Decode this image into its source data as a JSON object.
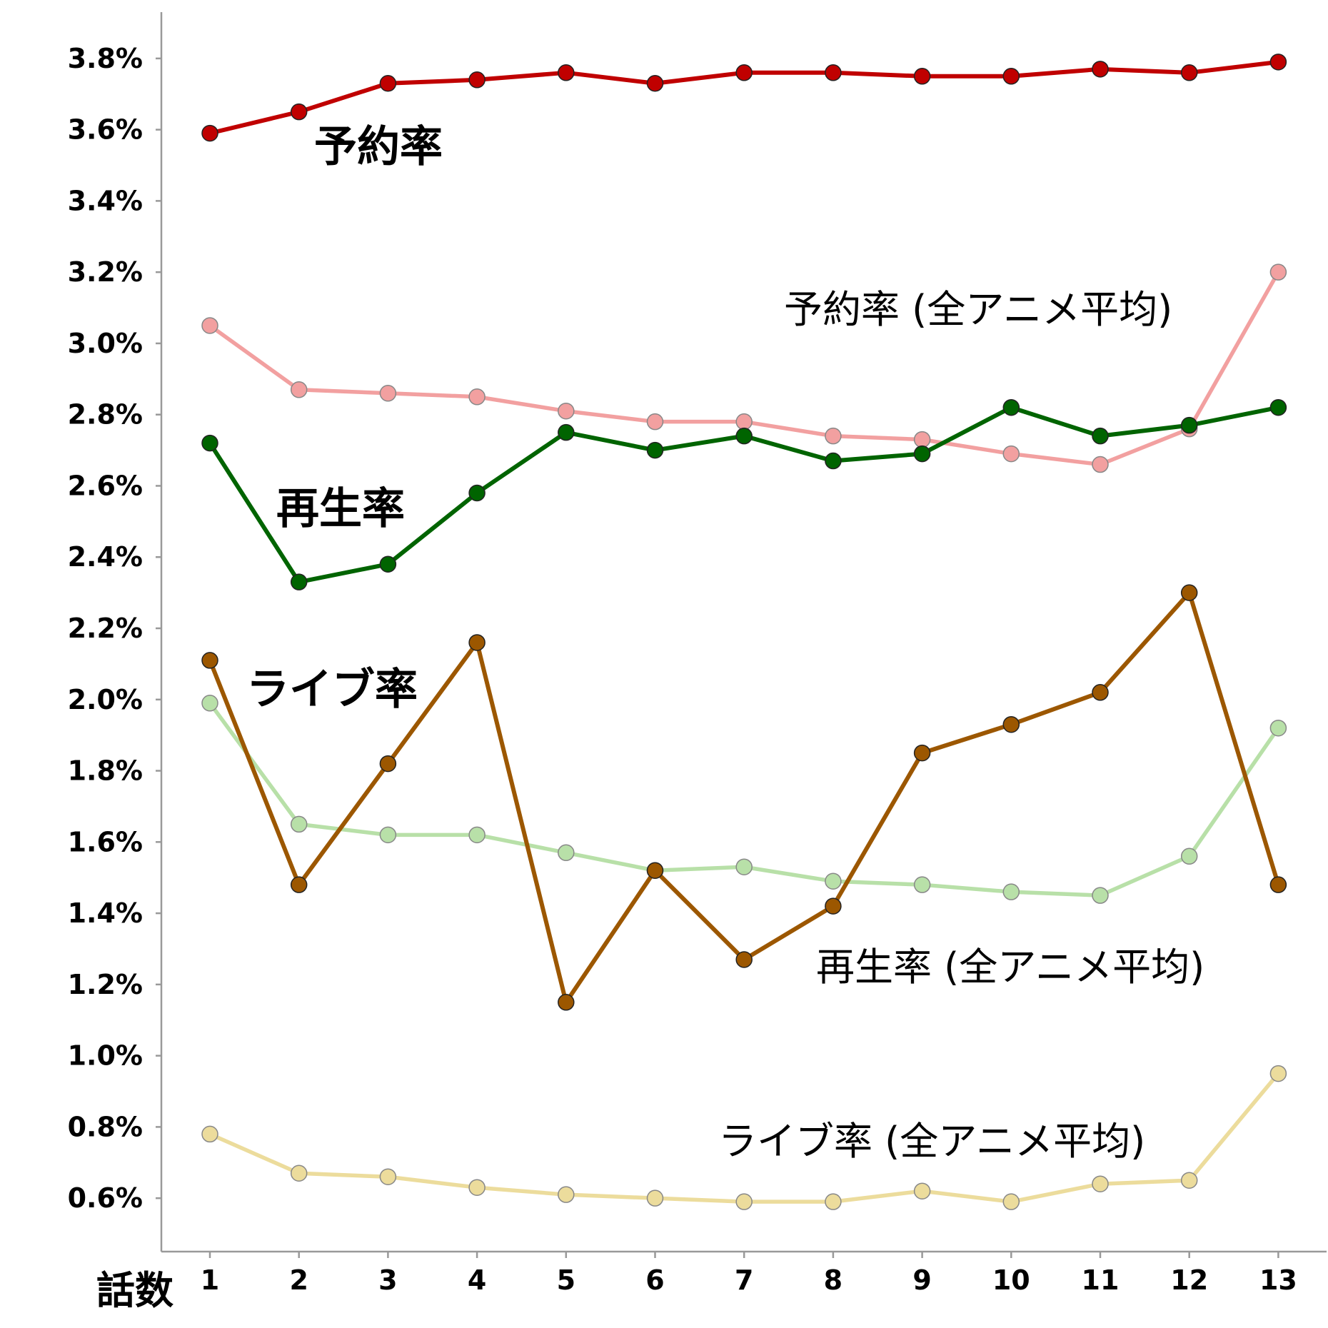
{
  "chart_data": {
    "type": "line",
    "xlabel": "話数",
    "ylabel": "",
    "x": [
      1,
      2,
      3,
      4,
      5,
      6,
      7,
      8,
      9,
      10,
      11,
      12,
      13
    ],
    "ylim": [
      0.45,
      3.93
    ],
    "yticks": [
      0.6,
      0.8,
      1.0,
      1.2,
      1.4,
      1.6,
      1.8,
      2.0,
      2.2,
      2.4,
      2.6,
      2.8,
      3.0,
      3.2,
      3.4,
      3.6,
      3.8
    ],
    "ytick_labels": [
      "0.6%",
      "0.8%",
      "1.0%",
      "1.2%",
      "1.4%",
      "1.6%",
      "1.8%",
      "2.0%",
      "2.2%",
      "2.4%",
      "2.6%",
      "2.8%",
      "3.0%",
      "3.2%",
      "3.4%",
      "3.6%",
      "3.8%"
    ],
    "grid": false,
    "series": [
      {
        "name": "予約率",
        "color": "#c00000",
        "bold": true,
        "values": [
          3.59,
          3.65,
          3.73,
          3.74,
          3.76,
          3.73,
          3.76,
          3.76,
          3.75,
          3.75,
          3.77,
          3.76,
          3.79
        ]
      },
      {
        "name": "予約率 (全アニメ平均)",
        "color": "#f2a0a0",
        "bold": false,
        "values": [
          3.05,
          2.87,
          2.86,
          2.85,
          2.81,
          2.78,
          2.78,
          2.74,
          2.73,
          2.69,
          2.66,
          2.76,
          3.2
        ]
      },
      {
        "name": "再生率",
        "color": "#006400",
        "bold": true,
        "values": [
          2.72,
          2.33,
          2.38,
          2.58,
          2.75,
          2.7,
          2.74,
          2.67,
          2.69,
          2.82,
          2.74,
          2.77,
          2.82
        ]
      },
      {
        "name": "再生率 (全アニメ平均)",
        "color": "#b8e0a8",
        "bold": false,
        "values": [
          1.99,
          1.65,
          1.62,
          1.62,
          1.57,
          1.52,
          1.53,
          1.49,
          1.48,
          1.46,
          1.45,
          1.56,
          1.92
        ]
      },
      {
        "name": "ライブ率",
        "color": "#9c5700",
        "bold": true,
        "values": [
          2.11,
          1.48,
          1.82,
          2.16,
          1.15,
          1.52,
          1.27,
          1.42,
          1.85,
          1.93,
          2.02,
          2.3,
          1.48
        ]
      },
      {
        "name": "ライブ率 (全アニメ平均)",
        "color": "#ecdc9c",
        "bold": false,
        "values": [
          0.78,
          0.67,
          0.66,
          0.63,
          0.61,
          0.6,
          0.59,
          0.59,
          0.62,
          0.59,
          0.64,
          0.65,
          0.95
        ]
      }
    ]
  }
}
